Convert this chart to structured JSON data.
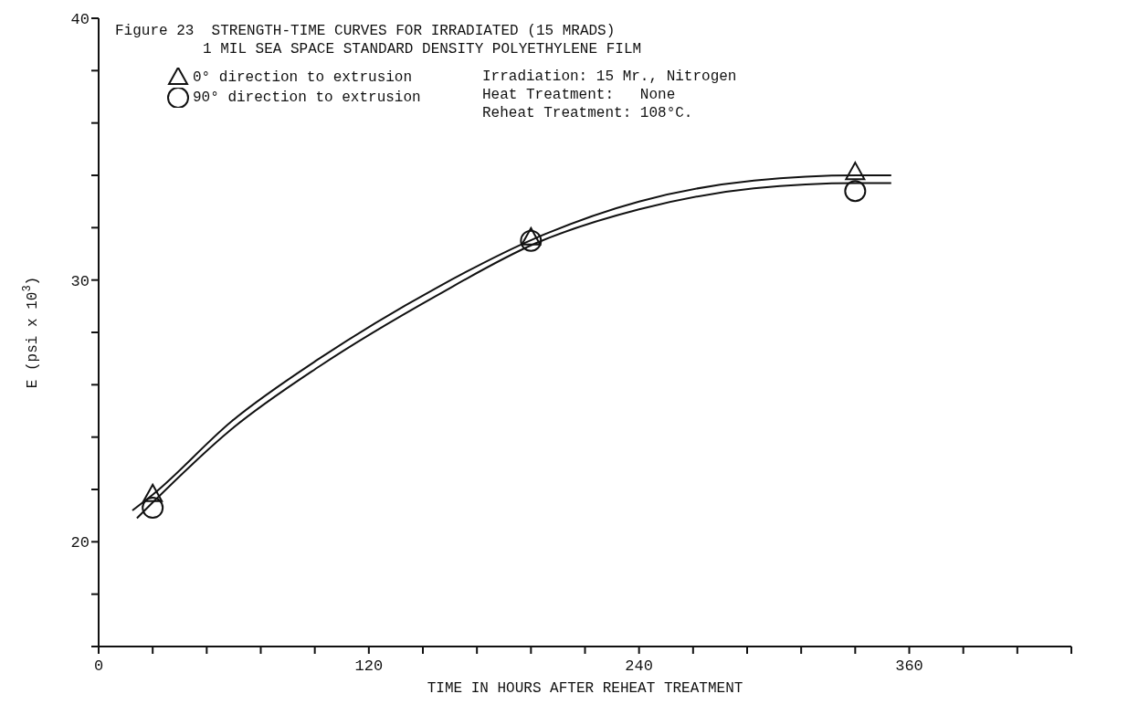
{
  "chart_data": {
    "type": "scatter",
    "title": "Figure 23  STRENGTH-TIME CURVES FOR IRRADIATED (15 MRADS)",
    "subtitle": "1 MIL SEA SPACE STANDARD DENSITY POLYETHYLENE FILM",
    "xlabel": "TIME IN HOURS AFTER REHEAT TREATMENT",
    "ylabel": "E (psi x 10$^{3}$)",
    "annotations": [
      "Irradiation: 15 Mr., Nitrogen",
      "Heat Treatment:   None",
      "Reheat Treatment: 108°C."
    ],
    "series": [
      {
        "name": "0° direction to extrusion",
        "marker": "triangle",
        "color": "#111111",
        "x": [
          24,
          192,
          336
        ],
        "values": [
          21.8,
          31.6,
          34.1
        ]
      },
      {
        "name": "90° direction to extrusion",
        "marker": "circle",
        "color": "#111111",
        "x": [
          24,
          192,
          336
        ],
        "values": [
          21.3,
          31.5,
          33.4
        ]
      },
      {
        "type": "line",
        "marker": "none",
        "color": "#111111",
        "x": [
          15,
          24,
          59,
          98,
          150,
          194,
          240,
          291,
          337,
          352
        ],
        "values": [
          21.2,
          21.8,
          24.6,
          27.0,
          29.7,
          31.6,
          33.0,
          33.8,
          34.0,
          34.0
        ]
      },
      {
        "type": "line",
        "marker": "none",
        "color": "#111111",
        "x": [
          17,
          24,
          59,
          98,
          150,
          194,
          240,
          291,
          337,
          352
        ],
        "values": [
          20.9,
          21.5,
          24.3,
          26.7,
          29.4,
          31.4,
          32.7,
          33.5,
          33.7,
          33.7
        ]
      }
    ],
    "xlim": [
      0,
      432
    ],
    "xticks": [
      0,
      {
        "value": 24,
        "label": null
      },
      {
        "value": 48,
        "label": null
      },
      {
        "value": 72,
        "label": null
      },
      {
        "value": 96,
        "label": null
      },
      120,
      {
        "value": 144,
        "label": null
      },
      {
        "value": 168,
        "label": null
      },
      {
        "value": 192,
        "label": null
      },
      {
        "value": 216,
        "label": null
      },
      240,
      {
        "value": 264,
        "label": null
      },
      {
        "value": 288,
        "label": null
      },
      {
        "value": 312,
        "label": null
      },
      {
        "value": 336,
        "label": null
      },
      360,
      {
        "value": 384,
        "label": null
      },
      {
        "value": 408,
        "label": null
      },
      {
        "value": 432,
        "label": null
      }
    ],
    "ylim": [
      16,
      40
    ],
    "yticks": [
      {
        "value": 16,
        "label": null
      },
      {
        "value": 18,
        "label": null
      },
      20,
      {
        "value": 22,
        "label": null
      },
      {
        "value": 24,
        "label": null
      },
      {
        "value": 26,
        "label": null
      },
      {
        "value": 28,
        "label": null
      },
      30,
      {
        "value": 32,
        "label": null
      },
      {
        "value": 34,
        "label": null
      },
      {
        "value": 36,
        "label": null
      },
      {
        "value": 38,
        "label": null
      },
      40
    ],
    "grid": false,
    "legend": "top left"
  }
}
